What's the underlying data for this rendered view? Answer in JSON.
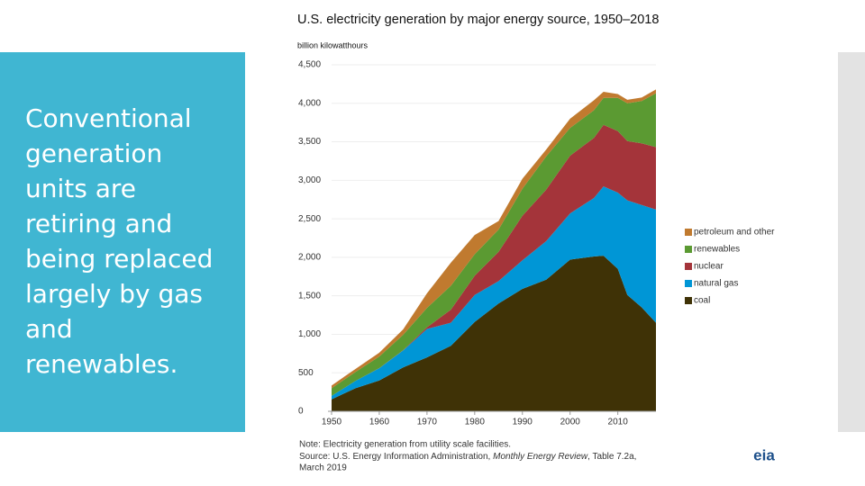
{
  "slide": {
    "text_lines": [
      "Conventional",
      "generation",
      "units are",
      "retiring and",
      "being replaced",
      "largely by gas",
      "and",
      "renewables."
    ]
  },
  "chart_data": {
    "type": "stacked_area",
    "title": "U.S. electricity generation by major energy source, 1950–2018",
    "y_label": "billion kilowatthours",
    "x": [
      1950,
      1955,
      1960,
      1965,
      1970,
      1975,
      1980,
      1985,
      1990,
      1995,
      2000,
      2005,
      2007,
      2010,
      2012,
      2015,
      2018
    ],
    "series": [
      {
        "name": "coal",
        "color": "#3f3206",
        "values": [
          155,
          300,
          400,
          570,
          700,
          850,
          1160,
          1400,
          1590,
          1710,
          1970,
          2010,
          2020,
          1850,
          1510,
          1350,
          1150
        ]
      },
      {
        "name": "natural gas",
        "color": "#0096d6",
        "values": [
          45,
          95,
          160,
          220,
          370,
          300,
          350,
          290,
          370,
          500,
          600,
          760,
          900,
          990,
          1230,
          1330,
          1470
        ]
      },
      {
        "name": "nuclear",
        "color": "#a4343a",
        "values": [
          0,
          0,
          1,
          4,
          22,
          170,
          250,
          380,
          580,
          670,
          750,
          780,
          800,
          800,
          770,
          800,
          810
        ]
      },
      {
        "name": "renewables",
        "color": "#5b9a32",
        "values": [
          100,
          115,
          150,
          200,
          250,
          310,
          280,
          290,
          350,
          430,
          360,
          360,
          350,
          430,
          490,
          550,
          700
        ]
      },
      {
        "name": "petroleum and other",
        "color": "#c07a2f",
        "values": [
          35,
          40,
          50,
          70,
          190,
          300,
          250,
          110,
          130,
          90,
          120,
          130,
          80,
          50,
          45,
          45,
          50
        ]
      }
    ],
    "xlim": [
      1950,
      2018
    ],
    "xticks": [
      1950,
      1960,
      1970,
      1980,
      1990,
      2000,
      2010
    ],
    "ylim": [
      0,
      4500
    ],
    "yticks": [
      0,
      500,
      {
        "value": 1000,
        "label": "1,000"
      },
      {
        "value": 1500,
        "label": "1,500"
      },
      {
        "value": 2000,
        "label": "2,000"
      },
      {
        "value": 2500,
        "label": "2,500"
      },
      {
        "value": 3000,
        "label": "3,000"
      },
      {
        "value": 3500,
        "label": "3,500"
      },
      {
        "value": 4000,
        "label": "4,000"
      },
      {
        "value": 4500,
        "label": "4,500"
      }
    ],
    "grid": true,
    "legend": "right",
    "note": "Note: Electricity generation from utility scale facilities.",
    "source": [
      "Source: U.S. Energy Information Administration, ",
      "Monthly Energy Review",
      ", Table 7.2a,",
      "March 2019"
    ],
    "logo": "eia"
  }
}
